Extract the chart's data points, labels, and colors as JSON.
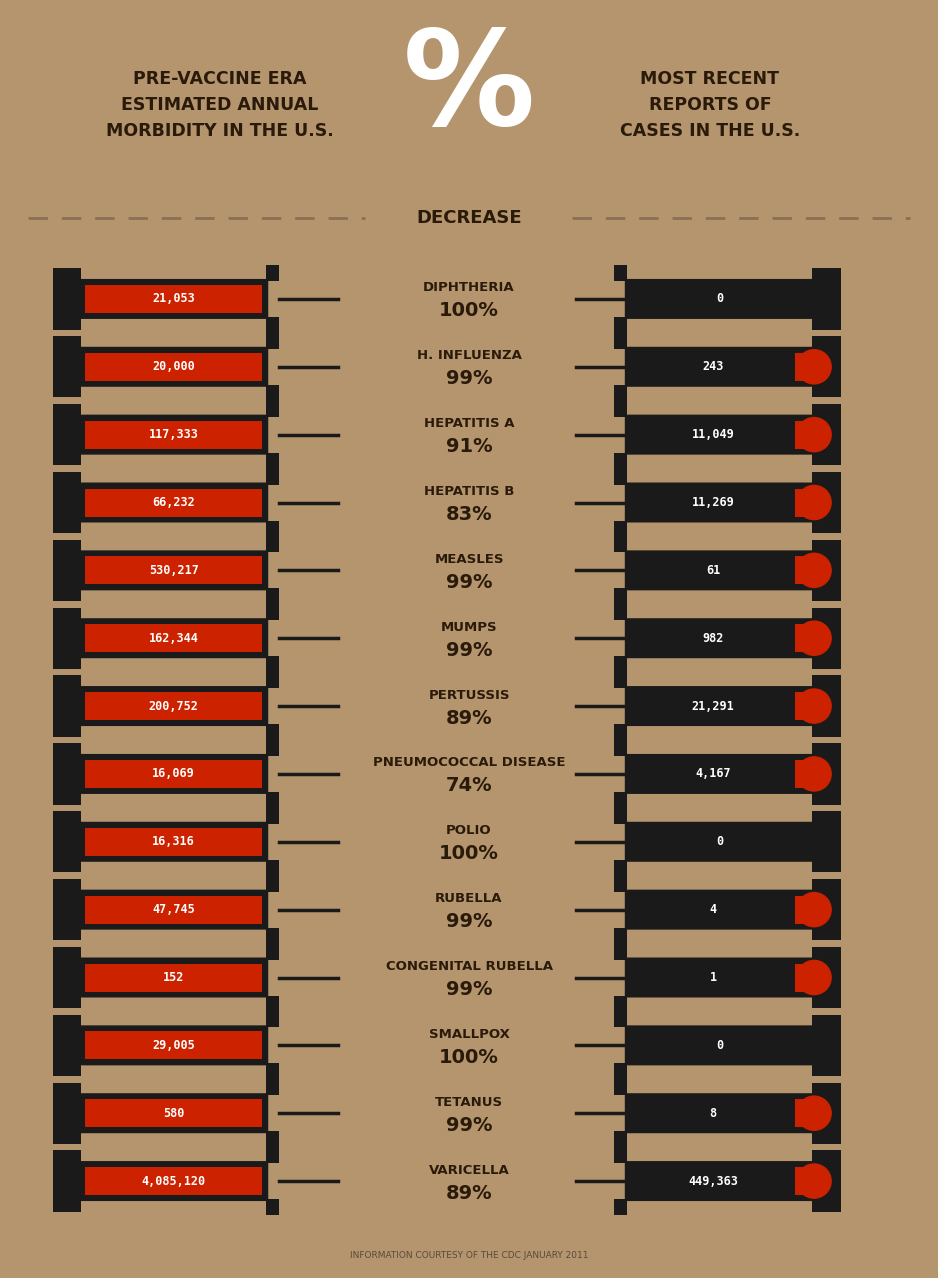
{
  "bg_color": "#b5956e",
  "title_left": "PRE-VACCINE ERA\nESTIMATED ANNUAL\nMORBIDITY IN THE U.S.",
  "title_right": "MOST RECENT\nREPORTS OF\nCASES IN THE U.S.",
  "title_center_big": "%",
  "title_center_small": "DECREASE",
  "footer": "INFORMATION COURTESY OF THE CDC JANUARY 2011",
  "diseases": [
    {
      "name": "DIPHTHERIA",
      "pct": "100%",
      "pre": "21,053",
      "post": "0",
      "post_red": false
    },
    {
      "name": "H. INFLUENZA",
      "pct": "99%",
      "pre": "20,000",
      "post": "243",
      "post_red": true
    },
    {
      "name": "HEPATITIS A",
      "pct": "91%",
      "pre": "117,333",
      "post": "11,049",
      "post_red": true
    },
    {
      "name": "HEPATITIS B",
      "pct": "83%",
      "pre": "66,232",
      "post": "11,269",
      "post_red": true,
      "post_circle": true
    },
    {
      "name": "MEASLES",
      "pct": "99%",
      "pre": "530,217",
      "post": "61",
      "post_red": true
    },
    {
      "name": "MUMPS",
      "pct": "99%",
      "pre": "162,344",
      "post": "982",
      "post_red": true
    },
    {
      "name": "PERTUSSIS",
      "pct": "89%",
      "pre": "200,752",
      "post": "21,291",
      "post_red": true
    },
    {
      "name": "PNEUMOCOCCAL DISEASE",
      "pct": "74%",
      "pre": "16,069",
      "post": "4,167",
      "post_red": true,
      "post_circle": true
    },
    {
      "name": "POLIO",
      "pct": "100%",
      "pre": "16,316",
      "post": "0",
      "post_red": false
    },
    {
      "name": "RUBELLA",
      "pct": "99%",
      "pre": "47,745",
      "post": "4",
      "post_red": true
    },
    {
      "name": "CONGENITAL RUBELLA",
      "pct": "99%",
      "pre": "152",
      "post": "1",
      "post_red": true
    },
    {
      "name": "SMALLPOX",
      "pct": "100%",
      "pre": "29,005",
      "post": "0",
      "post_red": false
    },
    {
      "name": "TETANUS",
      "pct": "99%",
      "pre": "580",
      "post": "8",
      "post_red": true
    },
    {
      "name": "VARICELLA",
      "pct": "89%",
      "pre": "4,085,120",
      "post": "449,363",
      "post_red": true
    }
  ],
  "red_color": "#cc2200",
  "black_color": "#1a1a1a",
  "dark_red_color": "#8b1500"
}
